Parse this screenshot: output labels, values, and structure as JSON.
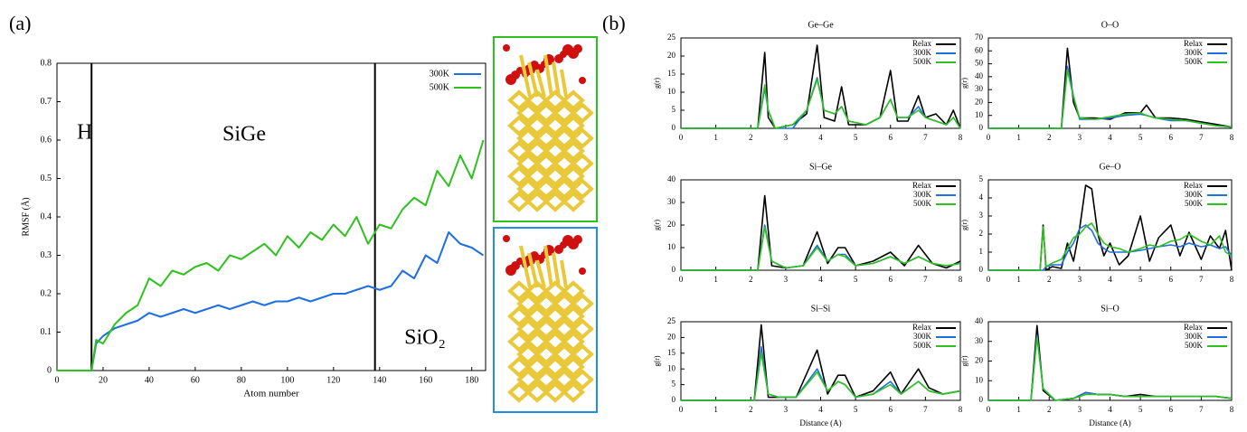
{
  "panel_labels": [
    "(a)",
    "(b)"
  ],
  "chart_data": [
    {
      "type": "line",
      "x_label": "Atom number",
      "y_label": "RMSF (Å)",
      "annotations": [
        "H",
        "SiGe",
        "SiO₂"
      ],
      "vlines": [
        15,
        138
      ],
      "xlim": [
        0,
        186
      ],
      "xticks": [
        0,
        20,
        40,
        60,
        80,
        100,
        120,
        140,
        160,
        180
      ],
      "ylim": [
        0,
        0.8
      ],
      "yticks": [
        0,
        0.1,
        0.2,
        0.3,
        0.4,
        0.5,
        0.6,
        0.7,
        0.8
      ],
      "x": [
        0,
        5,
        10,
        15,
        17,
        20,
        25,
        30,
        35,
        40,
        45,
        50,
        55,
        60,
        65,
        70,
        75,
        80,
        85,
        90,
        95,
        100,
        105,
        110,
        115,
        120,
        125,
        130,
        135,
        140,
        145,
        150,
        155,
        160,
        165,
        170,
        175,
        180,
        185
      ],
      "series": [
        {
          "name": "300K",
          "color": "#1f6fe0",
          "values": [
            0,
            0,
            0,
            0,
            0.07,
            0.09,
            0.11,
            0.12,
            0.13,
            0.15,
            0.14,
            0.15,
            0.16,
            0.15,
            0.16,
            0.17,
            0.16,
            0.17,
            0.18,
            0.17,
            0.18,
            0.18,
            0.19,
            0.18,
            0.19,
            0.2,
            0.2,
            0.21,
            0.22,
            0.21,
            0.22,
            0.26,
            0.24,
            0.3,
            0.28,
            0.36,
            0.33,
            0.32,
            0.3
          ]
        },
        {
          "name": "500K",
          "color": "#2ec21e",
          "values": [
            0,
            0,
            0,
            0,
            0.08,
            0.07,
            0.12,
            0.15,
            0.17,
            0.24,
            0.22,
            0.26,
            0.25,
            0.27,
            0.28,
            0.26,
            0.3,
            0.29,
            0.31,
            0.33,
            0.3,
            0.35,
            0.32,
            0.36,
            0.34,
            0.38,
            0.35,
            0.4,
            0.33,
            0.38,
            0.37,
            0.42,
            0.45,
            0.43,
            0.52,
            0.48,
            0.56,
            0.5,
            0.6
          ]
        }
      ]
    },
    {
      "type": "line",
      "title": "Ge–Ge",
      "y_label": "g(r)",
      "xlim": [
        0,
        8
      ],
      "xticks": [
        0,
        1,
        2,
        3,
        4,
        5,
        6,
        7,
        8
      ],
      "ylim": [
        0,
        25
      ],
      "yticks": [
        0,
        5,
        10,
        15,
        20,
        25
      ],
      "x": [
        0,
        2.2,
        2.4,
        2.5,
        2.7,
        3.2,
        3.6,
        3.9,
        4.1,
        4.4,
        4.6,
        4.8,
        5.3,
        5.7,
        6.0,
        6.2,
        6.5,
        6.8,
        7.0,
        7.3,
        7.6,
        7.8,
        8
      ],
      "series": [
        {
          "name": "Relax",
          "color": "#000000",
          "values": [
            0,
            0,
            21,
            3,
            0,
            1,
            4,
            23,
            3,
            2,
            11.5,
            1,
            1,
            3,
            16,
            2,
            2,
            9,
            3,
            4,
            1,
            5,
            0
          ]
        },
        {
          "name": "300K",
          "color": "#1f6fe0",
          "values": [
            0,
            0,
            11,
            5,
            0,
            0,
            5,
            14,
            5,
            4,
            6,
            2,
            1,
            3,
            8,
            3,
            3,
            6,
            3,
            2,
            1,
            3,
            0
          ]
        },
        {
          "name": "500K",
          "color": "#2ec21e",
          "values": [
            0,
            0,
            12,
            5,
            0,
            1,
            5,
            13.5,
            5,
            4,
            6,
            2,
            1,
            3,
            8,
            3,
            3,
            5,
            3,
            2,
            1,
            3,
            0
          ]
        }
      ]
    },
    {
      "type": "line",
      "title": "O–O",
      "y_label": "g(r)",
      "xlim": [
        0,
        8
      ],
      "xticks": [
        0,
        1,
        2,
        3,
        4,
        5,
        6,
        7,
        8
      ],
      "ylim": [
        0,
        70
      ],
      "yticks": [
        0,
        10,
        20,
        30,
        40,
        50,
        60,
        70
      ],
      "x": [
        0,
        2.4,
        2.6,
        2.8,
        3.0,
        3.5,
        4,
        4.5,
        5,
        5.2,
        5.5,
        6,
        6.5,
        7,
        7.5,
        8
      ],
      "series": [
        {
          "name": "Relax",
          "color": "#000000",
          "values": [
            0,
            0,
            62,
            20,
            8,
            8,
            7,
            12,
            12,
            18,
            8,
            8,
            7,
            5,
            3,
            1
          ]
        },
        {
          "name": "300K",
          "color": "#1f6fe0",
          "values": [
            0,
            0,
            48,
            25,
            7,
            7,
            8,
            10,
            11,
            10,
            8,
            6,
            6,
            4,
            2,
            1
          ]
        },
        {
          "name": "500K",
          "color": "#2ec21e",
          "values": [
            0,
            0,
            45,
            24,
            8,
            7,
            9,
            11,
            12,
            10,
            8,
            7,
            6,
            4,
            2,
            1
          ]
        }
      ]
    },
    {
      "type": "line",
      "title": "Si–Ge",
      "y_label": "g(r)",
      "xlim": [
        0,
        8
      ],
      "xticks": [
        0,
        1,
        2,
        3,
        4,
        5,
        6,
        7,
        8
      ],
      "ylim": [
        0,
        40
      ],
      "yticks": [
        0,
        10,
        20,
        30,
        40
      ],
      "x": [
        0,
        2.2,
        2.4,
        2.6,
        3.0,
        3.5,
        3.9,
        4.2,
        4.5,
        4.7,
        5,
        5.5,
        6,
        6.4,
        6.8,
        7.2,
        7.6,
        8
      ],
      "series": [
        {
          "name": "Relax",
          "color": "#000000",
          "values": [
            0,
            0,
            33,
            2,
            1,
            2,
            17,
            3,
            10,
            10,
            2,
            4,
            8,
            2,
            11,
            3,
            1,
            4
          ]
        },
        {
          "name": "300K",
          "color": "#1f6fe0",
          "values": [
            0,
            0,
            20,
            4,
            1,
            2,
            11,
            4,
            7,
            7,
            2,
            3,
            6,
            3,
            6,
            3,
            2,
            3
          ]
        },
        {
          "name": "500K",
          "color": "#2ec21e",
          "values": [
            0,
            0,
            19,
            4,
            1,
            2,
            10,
            4,
            7,
            6,
            2,
            3,
            6,
            3,
            6,
            3,
            2,
            3
          ]
        }
      ]
    },
    {
      "type": "line",
      "title": "Ge–O",
      "y_label": "g(r)",
      "xlim": [
        0,
        8
      ],
      "xticks": [
        0,
        1,
        2,
        3,
        4,
        5,
        6,
        7,
        8
      ],
      "ylim": [
        0,
        5
      ],
      "yticks": [
        0,
        1,
        2,
        3,
        4,
        5
      ],
      "x": [
        0,
        1.7,
        1.8,
        1.9,
        2.1,
        2.4,
        2.6,
        2.8,
        3.0,
        3.2,
        3.4,
        3.6,
        3.8,
        4.0,
        4.3,
        4.6,
        5.0,
        5.3,
        5.6,
        6.0,
        6.3,
        6.6,
        7.0,
        7.3,
        7.6,
        7.8,
        8
      ],
      "series": [
        {
          "name": "Relax",
          "color": "#000000",
          "values": [
            0,
            0,
            2.5,
            0,
            0.2,
            0.1,
            1.5,
            0.5,
            2.3,
            4.7,
            4.5,
            2,
            0.8,
            1.5,
            0.3,
            0.8,
            3,
            0.5,
            1.8,
            2.5,
            0.8,
            2.1,
            0.6,
            1.9,
            1.2,
            2.2,
            0
          ]
        },
        {
          "name": "300K",
          "color": "#1f6fe0",
          "values": [
            0,
            0,
            0,
            0.2,
            0.3,
            0.3,
            1,
            1.5,
            2.3,
            2.5,
            2.2,
            1.5,
            1.2,
            1,
            1,
            1,
            1.1,
            1.2,
            1.3,
            1.4,
            1.3,
            1.5,
            1.3,
            1.4,
            1.2,
            1.3,
            0.8
          ]
        },
        {
          "name": "500K",
          "color": "#2ec21e",
          "values": [
            0,
            0,
            2.4,
            0.2,
            0.4,
            0.6,
            1.2,
            1.8,
            2.0,
            2.4,
            2.6,
            2.0,
            1.5,
            1.3,
            1.2,
            1.0,
            1.2,
            1.4,
            1.3,
            1.6,
            1.7,
            2.0,
            1.6,
            1.4,
            1.9,
            1.0,
            0.8
          ]
        }
      ]
    },
    {
      "type": "line",
      "title": "Si–Si",
      "x_label": "Distance (A)",
      "y_label": "g(r)",
      "xlim": [
        0,
        8
      ],
      "xticks": [
        0,
        1,
        2,
        3,
        4,
        5,
        6,
        7,
        8
      ],
      "ylim": [
        0,
        25
      ],
      "yticks": [
        0,
        5,
        10,
        15,
        20,
        25
      ],
      "x": [
        0,
        2.1,
        2.3,
        2.5,
        2.8,
        3.3,
        3.9,
        4.2,
        4.5,
        4.7,
        5,
        5.5,
        6,
        6.3,
        6.8,
        7.1,
        7.5,
        8
      ],
      "series": [
        {
          "name": "Relax",
          "color": "#000000",
          "values": [
            0,
            0,
            24,
            1,
            1,
            1,
            16,
            2,
            8,
            8,
            1,
            3,
            9,
            2,
            10,
            4,
            2,
            3
          ]
        },
        {
          "name": "300K",
          "color": "#1f6fe0",
          "values": [
            0,
            0,
            17,
            2,
            1,
            1,
            10,
            3,
            6,
            5,
            1,
            2,
            6,
            2,
            6,
            3,
            2,
            3
          ]
        },
        {
          "name": "500K",
          "color": "#2ec21e",
          "values": [
            0,
            0,
            15,
            2,
            1,
            1,
            9,
            3,
            6,
            5,
            1,
            2,
            5,
            2,
            6,
            3,
            2,
            3
          ]
        }
      ]
    },
    {
      "type": "line",
      "title": "Si–O",
      "x_label": "Distance (A)",
      "y_label": "g(r)",
      "xlim": [
        0,
        8
      ],
      "xticks": [
        0,
        1,
        2,
        3,
        4,
        5,
        6,
        7,
        8
      ],
      "ylim": [
        0,
        40
      ],
      "yticks": [
        0,
        10,
        20,
        30,
        40
      ],
      "x": [
        0,
        1.4,
        1.6,
        1.8,
        2.2,
        2.8,
        3.2,
        3.6,
        4,
        4.5,
        5,
        5.5,
        6,
        6.5,
        7,
        7.5,
        8
      ],
      "series": [
        {
          "name": "Relax",
          "color": "#000000",
          "values": [
            0,
            0,
            38,
            5,
            0,
            1,
            4,
            3,
            3,
            2,
            3,
            2,
            2,
            2,
            2,
            2,
            1
          ]
        },
        {
          "name": "300K",
          "color": "#1f6fe0",
          "values": [
            0,
            0,
            33,
            6,
            0,
            1,
            4,
            3,
            3,
            2,
            2,
            2,
            2,
            2,
            2,
            2,
            1
          ]
        },
        {
          "name": "500K",
          "color": "#2ec21e",
          "values": [
            0,
            0,
            32,
            6,
            0,
            1,
            3,
            3,
            3,
            2,
            2,
            2,
            2,
            2,
            2,
            2,
            1
          ]
        }
      ]
    }
  ]
}
